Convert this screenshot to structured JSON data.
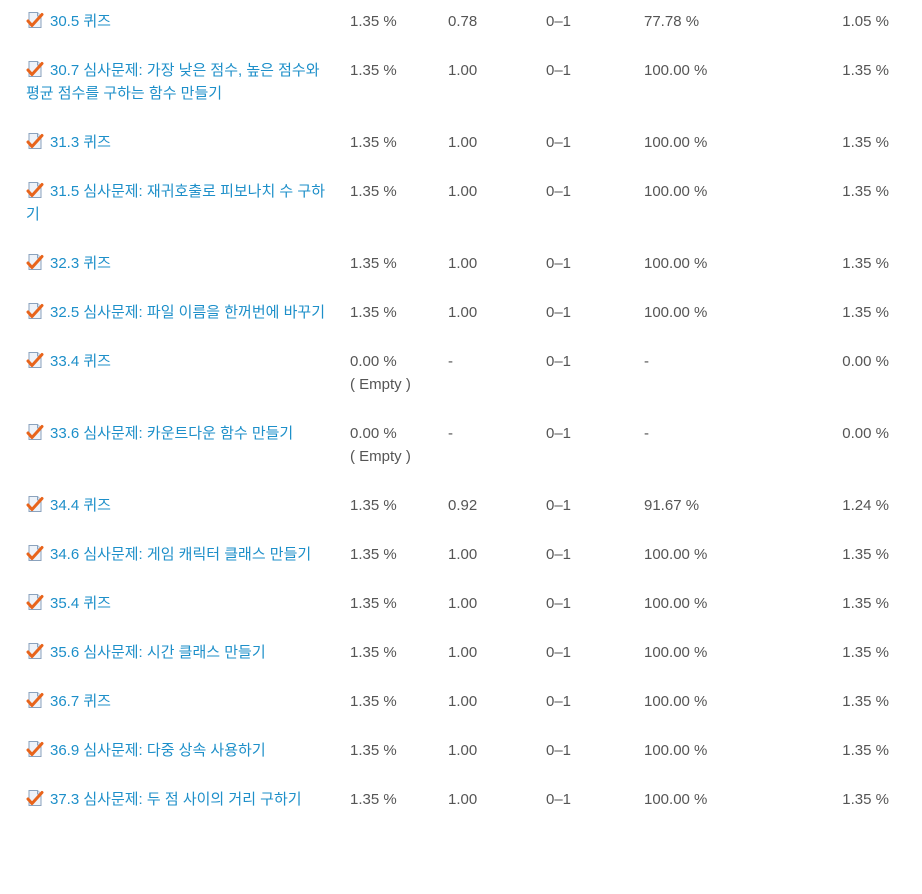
{
  "colors": {
    "link": "#1d8fc9",
    "text": "#555555",
    "check": "#e8641b"
  },
  "rows": [
    {
      "item": "30.5 퀴즈",
      "weight": "1.35 %",
      "grade": "0.78",
      "range": "0–1",
      "percentage": "77.78 %",
      "contribution": "1.05 %",
      "note": ""
    },
    {
      "item": "30.7 심사문제: 가장 낮은 점수, 높은 점수와 평균 점수를 구하는 함수 만들기",
      "weight": "1.35 %",
      "grade": "1.00",
      "range": "0–1",
      "percentage": "100.00 %",
      "contribution": "1.35 %",
      "note": ""
    },
    {
      "item": "31.3 퀴즈",
      "weight": "1.35 %",
      "grade": "1.00",
      "range": "0–1",
      "percentage": "100.00 %",
      "contribution": "1.35 %",
      "note": ""
    },
    {
      "item": "31.5 심사문제: 재귀호출로 피보나치 수 구하기",
      "weight": "1.35 %",
      "grade": "1.00",
      "range": "0–1",
      "percentage": "100.00 %",
      "contribution": "1.35 %",
      "note": ""
    },
    {
      "item": "32.3 퀴즈",
      "weight": "1.35 %",
      "grade": "1.00",
      "range": "0–1",
      "percentage": "100.00 %",
      "contribution": "1.35 %",
      "note": ""
    },
    {
      "item": "32.5 심사문제: 파일 이름을 한꺼번에 바꾸기",
      "weight": "1.35 %",
      "grade": "1.00",
      "range": "0–1",
      "percentage": "100.00 %",
      "contribution": "1.35 %",
      "note": ""
    },
    {
      "item": "33.4 퀴즈",
      "weight": "0.00 %",
      "grade": "-",
      "range": "0–1",
      "percentage": "-",
      "contribution": "0.00 %",
      "note": "( Empty )"
    },
    {
      "item": "33.6 심사문제: 카운트다운 함수 만들기",
      "weight": "0.00 %",
      "grade": "-",
      "range": "0–1",
      "percentage": "-",
      "contribution": "0.00 %",
      "note": "( Empty )"
    },
    {
      "item": "34.4 퀴즈",
      "weight": "1.35 %",
      "grade": "0.92",
      "range": "0–1",
      "percentage": "91.67 %",
      "contribution": "1.24 %",
      "note": ""
    },
    {
      "item": "34.6 심사문제: 게임 캐릭터 클래스 만들기",
      "weight": "1.35 %",
      "grade": "1.00",
      "range": "0–1",
      "percentage": "100.00 %",
      "contribution": "1.35 %",
      "note": ""
    },
    {
      "item": "35.4 퀴즈",
      "weight": "1.35 %",
      "grade": "1.00",
      "range": "0–1",
      "percentage": "100.00 %",
      "contribution": "1.35 %",
      "note": ""
    },
    {
      "item": "35.6 심사문제: 시간 클래스 만들기",
      "weight": "1.35 %",
      "grade": "1.00",
      "range": "0–1",
      "percentage": "100.00 %",
      "contribution": "1.35 %",
      "note": ""
    },
    {
      "item": "36.7 퀴즈",
      "weight": "1.35 %",
      "grade": "1.00",
      "range": "0–1",
      "percentage": "100.00 %",
      "contribution": "1.35 %",
      "note": ""
    },
    {
      "item": "36.9 심사문제: 다중 상속 사용하기",
      "weight": "1.35 %",
      "grade": "1.00",
      "range": "0–1",
      "percentage": "100.00 %",
      "contribution": "1.35 %",
      "note": ""
    },
    {
      "item": "37.3 심사문제: 두 점 사이의 거리 구하기",
      "weight": "1.35 %",
      "grade": "1.00",
      "range": "0–1",
      "percentage": "100.00 %",
      "contribution": "1.35 %",
      "note": ""
    }
  ]
}
